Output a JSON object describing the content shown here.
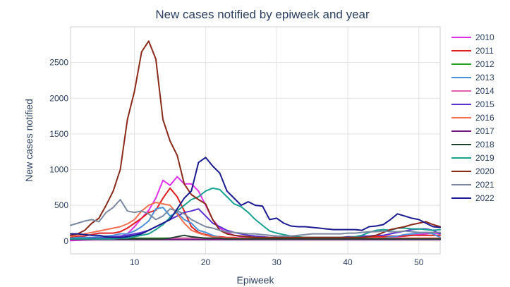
{
  "chart_data": {
    "type": "line",
    "title": "New cases notified by epiweek and year",
    "xlabel": "Epiweek",
    "ylabel": "New cases notified",
    "xlim": [
      1,
      53
    ],
    "ylim": [
      -180,
      3000
    ],
    "x_ticks": [
      10,
      20,
      30,
      40,
      50
    ],
    "y_ticks": [
      0,
      500,
      1000,
      1500,
      2000,
      2500
    ],
    "grid": true,
    "legend_position": "right",
    "series": [
      {
        "name": "2010",
        "color": "#e030e8",
        "values": [
          5,
          10,
          15,
          20,
          25,
          30,
          40,
          60,
          100,
          200,
          320,
          430,
          600,
          850,
          780,
          900,
          800,
          800,
          700,
          500,
          300,
          180,
          120,
          80,
          60,
          50,
          40,
          40,
          30,
          30,
          30,
          30,
          30,
          30,
          30,
          30,
          30,
          30,
          30,
          40,
          40,
          40,
          40,
          40,
          50,
          50,
          60,
          70,
          80,
          90,
          100,
          110,
          100
        ]
      },
      {
        "name": "2011",
        "color": "#e02020",
        "values": [
          50,
          60,
          70,
          90,
          110,
          110,
          110,
          130,
          180,
          250,
          320,
          400,
          430,
          600,
          740,
          620,
          420,
          200,
          120,
          90,
          70,
          60,
          50,
          50,
          40,
          40,
          40,
          30,
          30,
          30,
          30,
          30,
          30,
          30,
          40,
          40,
          40,
          40,
          40,
          40,
          50,
          50,
          50,
          60,
          60,
          70,
          70,
          70,
          80,
          80,
          80,
          80,
          80
        ]
      },
      {
        "name": "2012",
        "color": "#20a020",
        "values": [
          40,
          40,
          40,
          40,
          40,
          40,
          40,
          40,
          40,
          40,
          40,
          40,
          40,
          40,
          40,
          40,
          40,
          40,
          40,
          30,
          30,
          30,
          30,
          30,
          30,
          30,
          30,
          30,
          30,
          30,
          30,
          30,
          30,
          30,
          30,
          30,
          30,
          30,
          30,
          30,
          30,
          30,
          30,
          30,
          30,
          30,
          30,
          30,
          30,
          30,
          30,
          30,
          30
        ]
      },
      {
        "name": "2013",
        "color": "#4a90d9",
        "values": [
          40,
          50,
          50,
          50,
          60,
          70,
          80,
          100,
          100,
          140,
          200,
          280,
          450,
          470,
          350,
          400,
          300,
          250,
          150,
          120,
          80,
          50,
          40,
          30,
          30,
          30,
          30,
          30,
          30,
          30,
          30,
          30,
          30,
          30,
          30,
          30,
          30,
          30,
          30,
          30,
          30,
          30,
          30,
          40,
          40,
          60,
          70,
          90,
          100,
          110,
          120,
          100,
          50
        ]
      },
      {
        "name": "2014",
        "color": "#e060b0",
        "values": [
          20,
          20,
          20,
          20,
          30,
          30,
          30,
          30,
          30,
          30,
          30,
          30,
          30,
          30,
          30,
          40,
          40,
          40,
          40,
          40,
          40,
          40,
          40,
          40,
          40,
          40,
          40,
          40,
          40,
          40,
          40,
          40,
          40,
          40,
          40,
          40,
          40,
          40,
          40,
          40,
          40,
          40,
          40,
          40,
          40,
          40,
          40,
          40,
          40,
          40,
          40,
          40,
          40
        ]
      },
      {
        "name": "2015",
        "color": "#5a30d0",
        "values": [
          30,
          30,
          30,
          40,
          40,
          50,
          60,
          70,
          80,
          100,
          120,
          150,
          200,
          250,
          300,
          350,
          400,
          420,
          450,
          350,
          250,
          200,
          150,
          120,
          100,
          80,
          70,
          60,
          50,
          50,
          50,
          50,
          50,
          50,
          50,
          50,
          50,
          50,
          50,
          60,
          60,
          70,
          70,
          80,
          80,
          100,
          120,
          140,
          160,
          170,
          170,
          150,
          100
        ]
      },
      {
        "name": "2016",
        "color": "#f07050",
        "values": [
          70,
          80,
          100,
          120,
          140,
          160,
          180,
          200,
          240,
          300,
          420,
          500,
          540,
          520,
          500,
          380,
          250,
          150,
          110,
          80,
          60,
          50,
          40,
          40,
          40,
          40,
          40,
          40,
          40,
          40,
          40,
          40,
          40,
          40,
          40,
          40,
          40,
          40,
          40,
          40,
          40,
          40,
          40,
          40,
          40,
          40,
          40,
          40,
          40,
          40,
          40,
          40,
          40
        ]
      },
      {
        "name": "2017",
        "color": "#701a80",
        "values": [
          20,
          20,
          20,
          20,
          20,
          20,
          20,
          20,
          20,
          20,
          20,
          20,
          20,
          20,
          20,
          20,
          20,
          20,
          20,
          20,
          20,
          20,
          20,
          20,
          20,
          20,
          20,
          20,
          20,
          20,
          20,
          20,
          20,
          20,
          20,
          20,
          20,
          20,
          20,
          20,
          20,
          20,
          20,
          20,
          20,
          20,
          20,
          20,
          20,
          20,
          20,
          20,
          20
        ]
      },
      {
        "name": "2018",
        "color": "#204030",
        "values": [
          30,
          30,
          30,
          30,
          30,
          30,
          30,
          30,
          30,
          30,
          30,
          30,
          30,
          30,
          40,
          60,
          80,
          60,
          50,
          40,
          40,
          40,
          30,
          30,
          30,
          30,
          30,
          30,
          30,
          30,
          30,
          30,
          30,
          30,
          30,
          30,
          30,
          30,
          30,
          30,
          30,
          30,
          30,
          30,
          30,
          30,
          30,
          30,
          30,
          30,
          30,
          30,
          30
        ]
      },
      {
        "name": "2019",
        "color": "#18a090",
        "values": [
          30,
          30,
          30,
          30,
          30,
          30,
          30,
          40,
          40,
          60,
          80,
          100,
          160,
          230,
          330,
          420,
          500,
          580,
          620,
          700,
          740,
          720,
          620,
          520,
          480,
          400,
          300,
          220,
          140,
          110,
          90,
          70,
          60,
          50,
          50,
          50,
          50,
          50,
          50,
          50,
          60,
          80,
          120,
          150,
          160,
          150,
          180,
          180,
          170,
          170,
          160,
          150,
          160
        ]
      },
      {
        "name": "2020",
        "color": "#8a2a1a",
        "values": [
          80,
          100,
          150,
          250,
          320,
          500,
          700,
          1000,
          1700,
          2100,
          2650,
          2800,
          2550,
          1700,
          1400,
          1200,
          800,
          650,
          580,
          520,
          300,
          150,
          100,
          80,
          70,
          60,
          50,
          50,
          50,
          50,
          50,
          50,
          50,
          50,
          50,
          50,
          50,
          50,
          50,
          50,
          50,
          50,
          60,
          80,
          120,
          160,
          180,
          200,
          230,
          250,
          270,
          230,
          200
        ]
      },
      {
        "name": "2021",
        "color": "#7a88a0",
        "values": [
          220,
          250,
          280,
          300,
          270,
          400,
          470,
          580,
          420,
          400,
          420,
          380,
          300,
          350,
          450,
          420,
          380,
          300,
          250,
          200,
          180,
          150,
          130,
          120,
          110,
          100,
          100,
          90,
          80,
          70,
          70,
          70,
          80,
          90,
          100,
          100,
          100,
          100,
          100,
          110,
          110,
          120,
          130,
          130,
          140,
          130,
          130,
          140,
          130,
          120,
          120,
          120,
          120
        ]
      },
      {
        "name": "2022",
        "color": "#1a1a90",
        "values": [
          100,
          100,
          90,
          80,
          80,
          60,
          50,
          50,
          60,
          80,
          100,
          150,
          200,
          250,
          300,
          450,
          600,
          700,
          1100,
          1170,
          1050,
          950,
          700,
          600,
          500,
          550,
          500,
          490,
          300,
          320,
          250,
          210,
          200,
          200,
          190,
          180,
          170,
          160,
          160,
          160,
          160,
          150,
          200,
          210,
          230,
          300,
          380,
          350,
          320,
          300,
          250,
          200,
          190
        ]
      }
    ]
  }
}
